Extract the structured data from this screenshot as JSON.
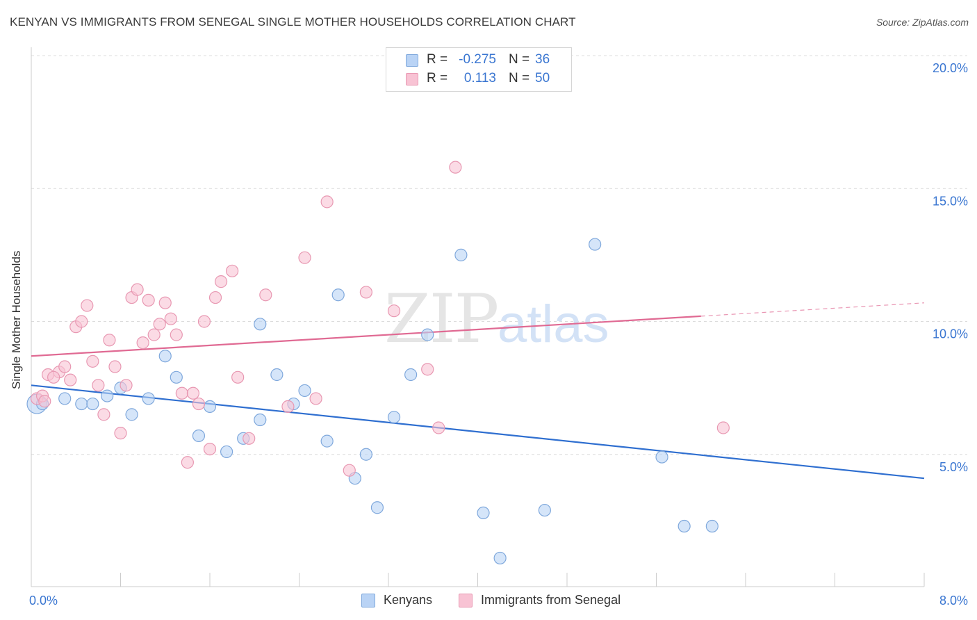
{
  "header": {
    "title": "KENYAN VS IMMIGRANTS FROM SENEGAL SINGLE MOTHER HOUSEHOLDS CORRELATION CHART",
    "source": "Source: ZipAtlas.com"
  },
  "watermark": {
    "zip": "ZIP",
    "atlas": "atlas"
  },
  "legend": {
    "rows": [
      {
        "r_label": "R =",
        "r_value": "-0.275",
        "n_label": "N =",
        "n_value": "36"
      },
      {
        "r_label": "R =",
        "r_value": "0.113",
        "n_label": "N =",
        "n_value": "50"
      }
    ]
  },
  "bottom_legend": {
    "kenyans": "Kenyans",
    "senegal": "Immigrants from Senegal"
  },
  "colors": {
    "kenyans_fill": "#b9d3f5",
    "kenyans_stroke": "#7fa8dc",
    "kenyans_line": "#2f6fd0",
    "senegal_fill": "#f8c3d4",
    "senegal_stroke": "#e898b2",
    "senegal_line": "#e06a93",
    "tick_label": "#3a76d1",
    "grid": "#dcdcdc"
  },
  "chart_data": {
    "type": "scatter",
    "xlabel": "",
    "ylabel": "Single Mother Households",
    "xlim": [
      0,
      8
    ],
    "ylim": [
      0,
      20
    ],
    "x_tick_labels": [
      "0.0%",
      "8.0%"
    ],
    "y_ticks": [
      5,
      10,
      15,
      20
    ],
    "y_tick_labels": [
      "5.0%",
      "10.0%",
      "15.0%",
      "20.0%"
    ],
    "grid": true,
    "legend_position": "top-center",
    "series": [
      {
        "name": "Kenyans",
        "r": -0.275,
        "n": 36,
        "trend": {
          "x": [
            0,
            8
          ],
          "y": [
            7.6,
            4.1
          ]
        },
        "points": [
          [
            0.05,
            6.9
          ],
          [
            0.1,
            6.9
          ],
          [
            0.3,
            7.1
          ],
          [
            0.45,
            6.9
          ],
          [
            0.55,
            6.9
          ],
          [
            0.68,
            7.2
          ],
          [
            0.8,
            7.5
          ],
          [
            0.9,
            6.5
          ],
          [
            1.05,
            7.1
          ],
          [
            1.2,
            8.7
          ],
          [
            1.3,
            7.9
          ],
          [
            1.5,
            5.7
          ],
          [
            1.6,
            6.8
          ],
          [
            1.75,
            5.1
          ],
          [
            1.9,
            5.6
          ],
          [
            2.05,
            6.3
          ],
          [
            2.05,
            9.9
          ],
          [
            2.2,
            8.0
          ],
          [
            2.35,
            6.9
          ],
          [
            2.45,
            7.4
          ],
          [
            2.65,
            5.5
          ],
          [
            2.75,
            11.0
          ],
          [
            2.9,
            4.1
          ],
          [
            3.0,
            5.0
          ],
          [
            3.1,
            3.0
          ],
          [
            3.25,
            6.4
          ],
          [
            3.4,
            8.0
          ],
          [
            3.55,
            9.5
          ],
          [
            3.85,
            12.5
          ],
          [
            4.05,
            2.8
          ],
          [
            4.2,
            1.1
          ],
          [
            4.6,
            2.9
          ],
          [
            5.05,
            12.9
          ],
          [
            5.65,
            4.9
          ],
          [
            5.85,
            2.3
          ],
          [
            6.1,
            2.3
          ]
        ]
      },
      {
        "name": "Immigrants from Senegal",
        "r": 0.113,
        "n": 50,
        "trend": {
          "x": [
            0,
            6
          ],
          "y": [
            8.7,
            10.2
          ]
        },
        "trend_dashed": {
          "x": [
            6,
            8
          ],
          "y": [
            10.2,
            10.7
          ]
        },
        "points": [
          [
            0.05,
            7.1
          ],
          [
            0.1,
            7.2
          ],
          [
            0.15,
            8.0
          ],
          [
            0.25,
            8.1
          ],
          [
            0.3,
            8.3
          ],
          [
            0.35,
            7.8
          ],
          [
            0.4,
            9.8
          ],
          [
            0.45,
            10.0
          ],
          [
            0.5,
            10.6
          ],
          [
            0.55,
            8.5
          ],
          [
            0.6,
            7.6
          ],
          [
            0.65,
            6.5
          ],
          [
            0.7,
            9.3
          ],
          [
            0.75,
            8.3
          ],
          [
            0.8,
            5.8
          ],
          [
            0.85,
            7.6
          ],
          [
            0.9,
            10.9
          ],
          [
            0.95,
            11.2
          ],
          [
            1.0,
            9.2
          ],
          [
            1.05,
            10.8
          ],
          [
            1.1,
            9.5
          ],
          [
            1.15,
            9.9
          ],
          [
            1.2,
            10.7
          ],
          [
            1.25,
            10.1
          ],
          [
            1.3,
            9.5
          ],
          [
            1.35,
            7.3
          ],
          [
            1.4,
            4.7
          ],
          [
            1.45,
            7.3
          ],
          [
            1.5,
            6.9
          ],
          [
            1.55,
            10.0
          ],
          [
            1.6,
            5.2
          ],
          [
            1.65,
            10.9
          ],
          [
            1.7,
            11.5
          ],
          [
            1.8,
            11.9
          ],
          [
            1.85,
            7.9
          ],
          [
            1.95,
            5.6
          ],
          [
            2.1,
            11.0
          ],
          [
            2.3,
            6.8
          ],
          [
            2.45,
            12.4
          ],
          [
            2.55,
            7.1
          ],
          [
            2.65,
            14.5
          ],
          [
            2.85,
            4.4
          ],
          [
            3.0,
            11.1
          ],
          [
            3.25,
            10.4
          ],
          [
            3.55,
            8.2
          ],
          [
            3.65,
            6.0
          ],
          [
            3.8,
            15.8
          ],
          [
            0.2,
            7.9
          ],
          [
            0.12,
            7.0
          ],
          [
            6.2,
            6.0
          ]
        ]
      }
    ]
  }
}
